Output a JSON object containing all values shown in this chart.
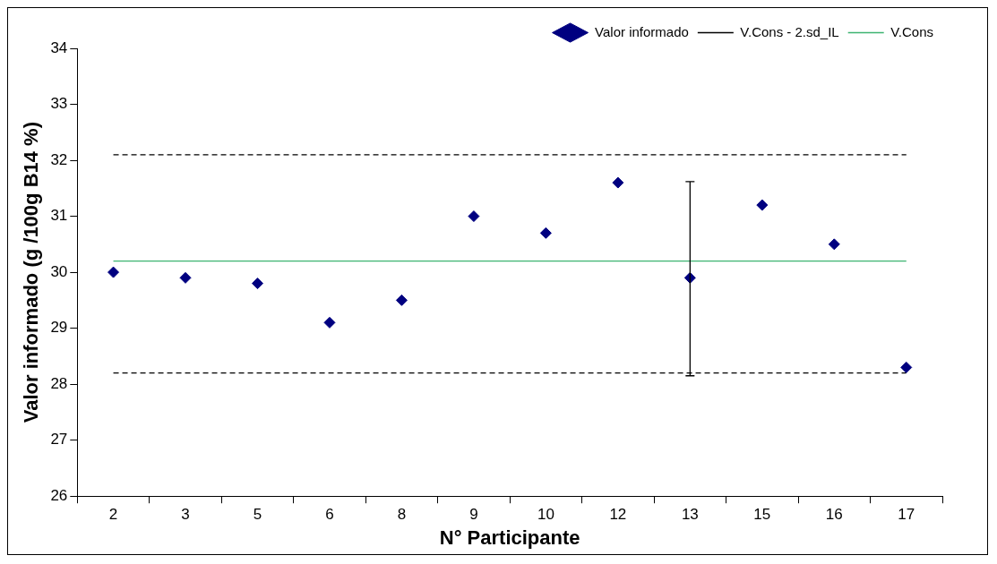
{
  "chart_data": {
    "type": "scatter",
    "xlabel": "N° Participante",
    "ylabel": "Valor informado (g /100g B14 %)",
    "categories": [
      "2",
      "3",
      "5",
      "6",
      "8",
      "9",
      "10",
      "12",
      "13",
      "15",
      "16",
      "17"
    ],
    "series": [
      {
        "name": "Valor informado",
        "marker": "diamond",
        "color": "#000080",
        "values": [
          30.0,
          29.9,
          29.8,
          29.1,
          29.5,
          31.0,
          30.7,
          31.6,
          29.9,
          31.2,
          30.5,
          28.3
        ],
        "errors": [
          null,
          null,
          null,
          null,
          null,
          null,
          null,
          null,
          [
            28.15,
            31.62
          ],
          null,
          null,
          null
        ]
      },
      {
        "name": "V.Cons - 2.sd_IL",
        "type": "line",
        "marker": "none",
        "line_style": "dashed",
        "color": "#000000",
        "values": [
          32.1,
          32.1,
          32.1,
          32.1,
          32.1,
          32.1,
          32.1,
          32.1,
          32.1,
          32.1,
          32.1,
          32.1
        ]
      },
      {
        "type": "line",
        "marker": "none",
        "line_style": "dashed",
        "color": "#000000",
        "values": [
          28.2,
          28.2,
          28.2,
          28.2,
          28.2,
          28.2,
          28.2,
          28.2,
          28.2,
          28.2,
          28.2,
          28.2
        ]
      },
      {
        "name": "V.Cons",
        "type": "line",
        "marker": "none",
        "line_style": "solid",
        "color": "#3cb371",
        "values": [
          30.2,
          30.2,
          30.2,
          30.2,
          30.2,
          30.2,
          30.2,
          30.2,
          30.2,
          30.2,
          30.2,
          30.2
        ]
      }
    ],
    "ylim": [
      26,
      34
    ],
    "yticks": [
      26,
      27,
      28,
      29,
      30,
      31,
      32,
      33,
      34
    ],
    "grid": false,
    "legend": "top right"
  }
}
